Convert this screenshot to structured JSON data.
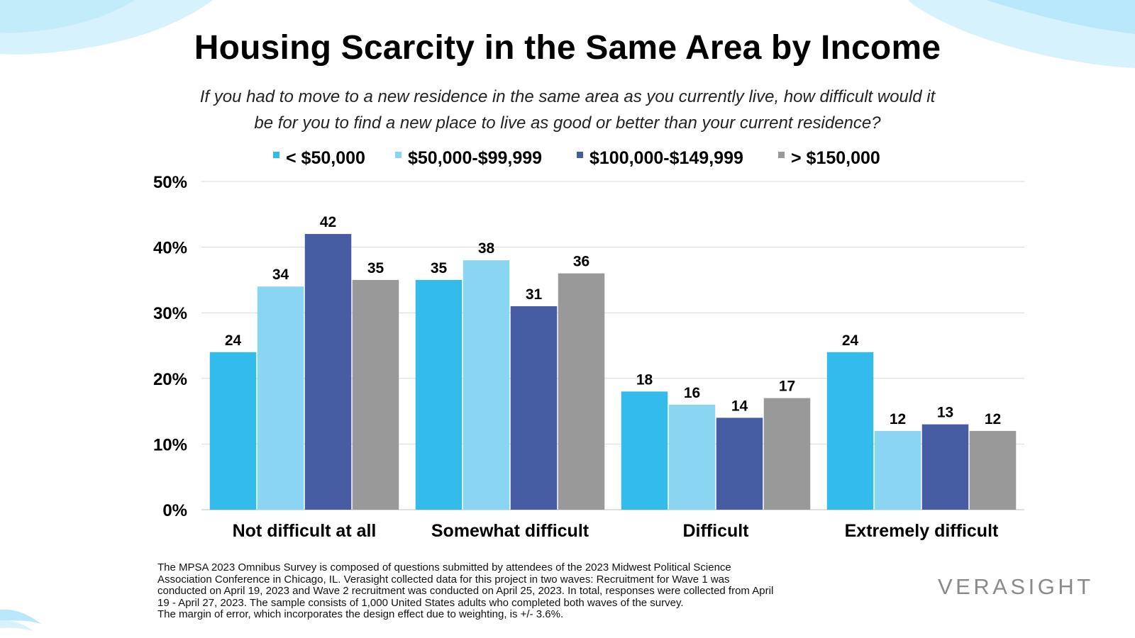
{
  "title": "Housing Scarcity in the Same Area by Income",
  "subtitle_line1": "If you had to move to a new residence in the same area as you currently live, how difficult would it",
  "subtitle_line2": "be for you to find a new place to live as good or better than your current residence?",
  "footnote_lines": [
    "The MPSA 2023 Omnibus Survey is composed of questions submitted by attendees of the 2023 Midwest Political Science",
    "Association Conference in Chicago, IL. Verasight collected data for this project in two waves: Recruitment for Wave 1 was",
    "conducted on April 19, 2023 and Wave 2 recruitment was conducted on April 25, 2023. In total, responses were collected from April",
    "19 - April 27, 2023. The sample consists of 1,000 United States adults who completed both waves of the survey.",
    "The margin of error, which incorporates the design effect due to weighting, is +/- 3.6%."
  ],
  "logo_text": "VERASIGHT",
  "colors": {
    "series": [
      "#33bbeb",
      "#8ad5f2",
      "#465da3",
      "#999999"
    ],
    "grid": "#d9d9d9",
    "wave": "#cdeffb"
  },
  "chart_data": {
    "type": "bar",
    "title": "Housing Scarcity in the Same Area by Income",
    "xlabel": "",
    "ylabel": "",
    "categories": [
      "Not difficult at all",
      "Somewhat difficult",
      "Difficult",
      "Extremely difficult"
    ],
    "series": [
      {
        "name": "< $50,000",
        "values": [
          24,
          35,
          18,
          24
        ]
      },
      {
        "name": "$50,000-$99,999",
        "values": [
          34,
          38,
          16,
          12
        ]
      },
      {
        "name": "$100,000-$149,999",
        "values": [
          42,
          31,
          14,
          13
        ]
      },
      {
        "name": "> $150,000",
        "values": [
          35,
          36,
          17,
          12
        ]
      }
    ],
    "ylim": [
      0,
      50
    ],
    "yticks": [
      0,
      10,
      20,
      30,
      40,
      50
    ],
    "ytick_labels": [
      "0%",
      "10%",
      "20%",
      "30%",
      "40%",
      "50%"
    ],
    "grid": true,
    "legend_position": "top-center"
  }
}
